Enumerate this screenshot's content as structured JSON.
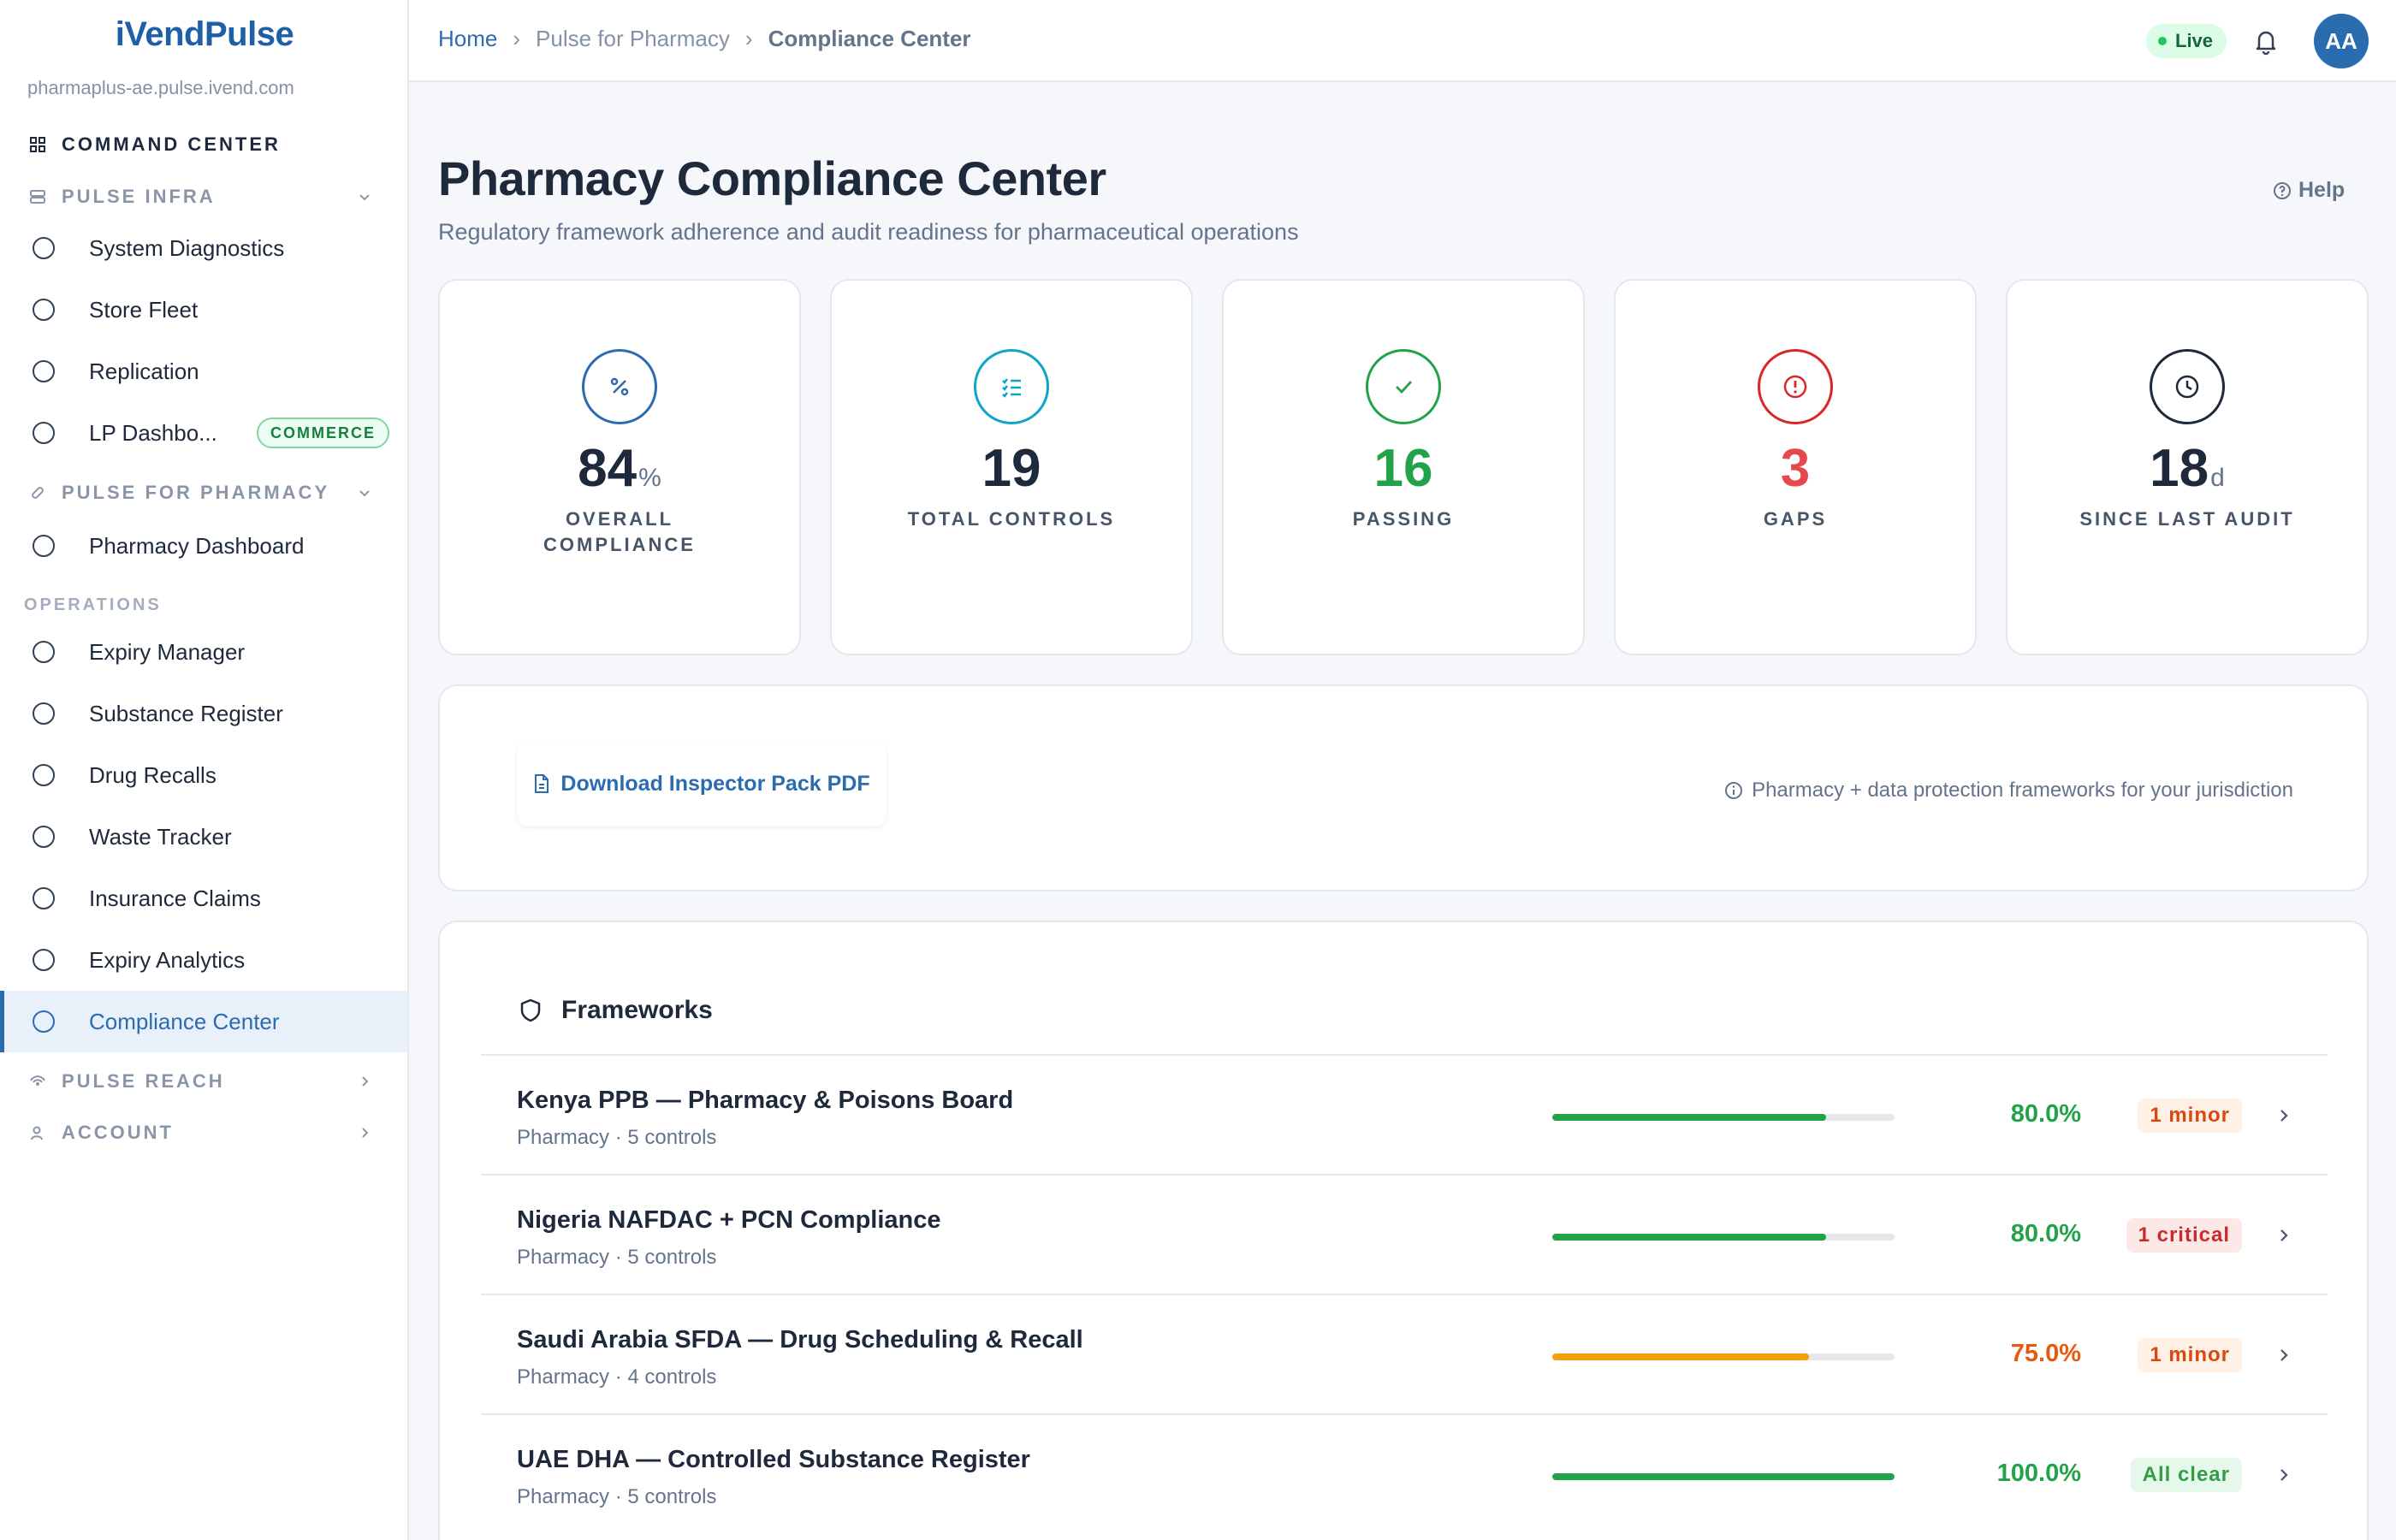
{
  "app": {
    "brand": "iVendPulse",
    "tenant_url": "pharmaplus-ae.pulse.ivend.com"
  },
  "sidebar": {
    "command_center": "COMMAND CENTER",
    "pulse_infra": {
      "label": "PULSE INFRA",
      "items": [
        {
          "label": "System Diagnostics"
        },
        {
          "label": "Store Fleet"
        },
        {
          "label": "Replication"
        },
        {
          "label": "LP Dashbo...",
          "badge": "COMMERCE"
        }
      ]
    },
    "pulse_pharmacy": {
      "label": "PULSE FOR PHARMACY",
      "items": [
        {
          "label": "Pharmacy Dashboard"
        }
      ]
    },
    "operations": {
      "label": "OPERATIONS",
      "items": [
        {
          "label": "Expiry Manager"
        },
        {
          "label": "Substance Register"
        },
        {
          "label": "Drug Recalls"
        },
        {
          "label": "Waste Tracker"
        },
        {
          "label": "Insurance Claims"
        },
        {
          "label": "Expiry Analytics"
        },
        {
          "label": "Compliance Center",
          "active": true
        }
      ]
    },
    "pulse_reach": "PULSE REACH",
    "account": "ACCOUNT"
  },
  "header": {
    "breadcrumbs": [
      "Home",
      "Pulse for Pharmacy",
      "Compliance Center"
    ],
    "breadcrumb_separator": "›",
    "status": "Live",
    "avatar_initials": "AA"
  },
  "page": {
    "title": "Pharmacy Compliance Center",
    "subtitle": "Regulatory framework adherence and audit readiness for pharmaceutical operations",
    "help": "Help"
  },
  "stats": [
    {
      "value": "84",
      "unit": "%",
      "caption_line1": "OVERALL",
      "caption_line2": "COMPLIANCE",
      "icon": "percent-icon",
      "color": "#2b6cb0",
      "value_color": "#1e293b"
    },
    {
      "value": "19",
      "unit": "",
      "caption_line1": "TOTAL CONTROLS",
      "caption_line2": "",
      "icon": "checklist-icon",
      "color": "#0ea5c6",
      "value_color": "#1e293b"
    },
    {
      "value": "16",
      "unit": "",
      "caption_line1": "PASSING",
      "caption_line2": "",
      "icon": "check-icon",
      "color": "#22a34a",
      "value_color": "#22a34a"
    },
    {
      "value": "3",
      "unit": "",
      "caption_line1": "GAPS",
      "caption_line2": "",
      "icon": "alert-icon",
      "color": "#dc2626",
      "value_color": "#e5484d"
    },
    {
      "value": "18",
      "unit": "d",
      "caption_line1": "SINCE LAST AUDIT",
      "caption_line2": "",
      "icon": "clock-icon",
      "color": "#1e293b",
      "value_color": "#1e293b"
    }
  ],
  "actions": {
    "download": "Download Inspector Pack PDF",
    "jurisdiction_note": "Pharmacy + data protection frameworks for your jurisdiction"
  },
  "frameworks": {
    "title": "Frameworks",
    "rows": [
      {
        "name": "Kenya PPB — Pharmacy & Poisons Board",
        "meta": "Pharmacy · 5 controls",
        "percent": 80.0,
        "percent_label": "80.0%",
        "bar_color": "#22a34a",
        "pct_color": "#22a34a",
        "badge": "1 minor",
        "badge_bg": "#fff1e6",
        "badge_fg": "#d9480f"
      },
      {
        "name": "Nigeria NAFDAC + PCN Compliance",
        "meta": "Pharmacy · 5 controls",
        "percent": 80.0,
        "percent_label": "80.0%",
        "bar_color": "#22a34a",
        "pct_color": "#22a34a",
        "badge": "1 critical",
        "badge_bg": "#fde8e8",
        "badge_fg": "#c92a2a"
      },
      {
        "name": "Saudi Arabia SFDA — Drug Scheduling & Recall",
        "meta": "Pharmacy · 4 controls",
        "percent": 75.0,
        "percent_label": "75.0%",
        "bar_color": "#f59e0b",
        "pct_color": "#e8590c",
        "badge": "1 minor",
        "badge_bg": "#fff1e6",
        "badge_fg": "#d9480f"
      },
      {
        "name": "UAE DHA — Controlled Substance Register",
        "meta": "Pharmacy · 5 controls",
        "percent": 100.0,
        "percent_label": "100.0%",
        "bar_color": "#22a34a",
        "pct_color": "#22a34a",
        "badge": "All clear",
        "badge_bg": "#e6f7ec",
        "badge_fg": "#2f9e44"
      }
    ]
  }
}
